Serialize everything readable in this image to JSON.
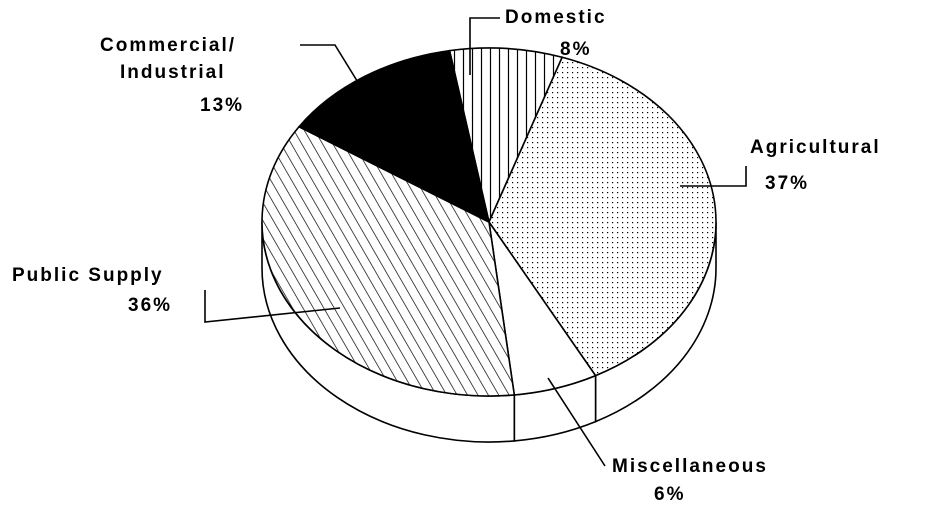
{
  "chart_data": {
    "type": "pie",
    "categories": [
      "Domestic",
      "Agricultural",
      "Miscellaneous",
      "Public Supply",
      "Commercial/Industrial"
    ],
    "values": [
      8,
      37,
      6,
      36,
      13
    ],
    "value_labels": [
      "8%",
      "37%",
      "6%",
      "36%",
      "13%"
    ]
  }
}
